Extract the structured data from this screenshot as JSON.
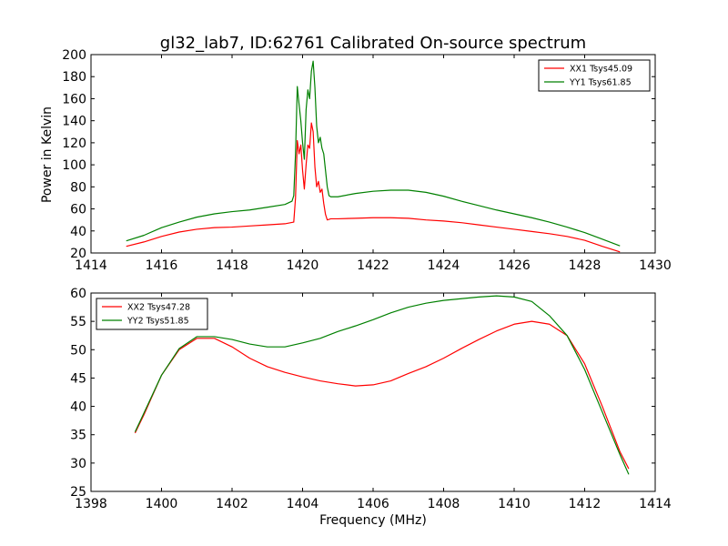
{
  "chart_data": [
    {
      "type": "line",
      "title": "gl32_lab7, ID:62761 Calibrated On-source spectrum",
      "xlabel": "",
      "ylabel": "Power in Kelvin",
      "xlim": [
        1414,
        1430
      ],
      "ylim": [
        20,
        200
      ],
      "xticks": [
        1414,
        1416,
        1418,
        1420,
        1422,
        1424,
        1426,
        1428,
        1430
      ],
      "yticks": [
        20,
        40,
        60,
        80,
        100,
        120,
        140,
        160,
        180,
        200
      ],
      "grid": false,
      "legend": "top-right",
      "series": [
        {
          "name": "XX1 Tsys45.09",
          "color": "#ff0000",
          "points": [
            [
              1415.0,
              26
            ],
            [
              1415.5,
              30
            ],
            [
              1416.0,
              35
            ],
            [
              1416.5,
              39
            ],
            [
              1417.0,
              41.5
            ],
            [
              1417.5,
              43
            ],
            [
              1418.0,
              43.5
            ],
            [
              1418.5,
              44.5
            ],
            [
              1419.0,
              45.5
            ],
            [
              1419.5,
              46.5
            ],
            [
              1419.75,
              48
            ],
            [
              1419.8,
              70
            ],
            [
              1419.85,
              122
            ],
            [
              1419.9,
              110
            ],
            [
              1419.95,
              118
            ],
            [
              1420.0,
              95
            ],
            [
              1420.05,
              78
            ],
            [
              1420.1,
              100
            ],
            [
              1420.15,
              118
            ],
            [
              1420.2,
              115
            ],
            [
              1420.25,
              138
            ],
            [
              1420.3,
              130
            ],
            [
              1420.35,
              98
            ],
            [
              1420.4,
              80
            ],
            [
              1420.45,
              85
            ],
            [
              1420.5,
              75
            ],
            [
              1420.55,
              78
            ],
            [
              1420.6,
              65
            ],
            [
              1420.65,
              55
            ],
            [
              1420.7,
              50
            ],
            [
              1420.8,
              51
            ],
            [
              1421.0,
              51
            ],
            [
              1421.5,
              51.5
            ],
            [
              1422.0,
              52
            ],
            [
              1422.5,
              52
            ],
            [
              1423.0,
              51.5
            ],
            [
              1423.5,
              50
            ],
            [
              1424.0,
              49
            ],
            [
              1424.5,
              47.5
            ],
            [
              1425.0,
              45.5
            ],
            [
              1425.5,
              43.5
            ],
            [
              1426.0,
              41.5
            ],
            [
              1426.5,
              39.5
            ],
            [
              1427.0,
              37.5
            ],
            [
              1427.5,
              35
            ],
            [
              1428.0,
              31.5
            ],
            [
              1428.5,
              26
            ],
            [
              1429.0,
              21
            ]
          ]
        },
        {
          "name": "YY1 Tsys61.85",
          "color": "#008000",
          "points": [
            [
              1415.0,
              31
            ],
            [
              1415.5,
              36
            ],
            [
              1416.0,
              43
            ],
            [
              1416.5,
              48
            ],
            [
              1417.0,
              52.5
            ],
            [
              1417.5,
              55.5
            ],
            [
              1418.0,
              57.5
            ],
            [
              1418.5,
              59
            ],
            [
              1419.0,
              61.5
            ],
            [
              1419.5,
              64
            ],
            [
              1419.7,
              67
            ],
            [
              1419.75,
              72
            ],
            [
              1419.8,
              110
            ],
            [
              1419.85,
              171
            ],
            [
              1419.9,
              155
            ],
            [
              1419.95,
              140
            ],
            [
              1420.0,
              120
            ],
            [
              1420.05,
              105
            ],
            [
              1420.1,
              150
            ],
            [
              1420.15,
              168
            ],
            [
              1420.2,
              160
            ],
            [
              1420.25,
              185
            ],
            [
              1420.3,
              194
            ],
            [
              1420.35,
              170
            ],
            [
              1420.4,
              135
            ],
            [
              1420.45,
              120
            ],
            [
              1420.5,
              125
            ],
            [
              1420.55,
              115
            ],
            [
              1420.6,
              110
            ],
            [
              1420.65,
              95
            ],
            [
              1420.7,
              80
            ],
            [
              1420.75,
              72
            ],
            [
              1420.8,
              71
            ],
            [
              1421.0,
              71
            ],
            [
              1421.5,
              74
            ],
            [
              1422.0,
              76
            ],
            [
              1422.5,
              77
            ],
            [
              1423.0,
              77
            ],
            [
              1423.5,
              75
            ],
            [
              1424.0,
              71.5
            ],
            [
              1424.5,
              67
            ],
            [
              1425.0,
              63
            ],
            [
              1425.5,
              59
            ],
            [
              1426.0,
              55.5
            ],
            [
              1426.5,
              52
            ],
            [
              1427.0,
              48
            ],
            [
              1427.5,
              43.5
            ],
            [
              1428.0,
              38.5
            ],
            [
              1428.5,
              32.5
            ],
            [
              1429.0,
              26.5
            ]
          ]
        }
      ]
    },
    {
      "type": "line",
      "title": "",
      "xlabel": "Frequency (MHz)",
      "ylabel": "",
      "xlim": [
        1398,
        1414
      ],
      "ylim": [
        25,
        60
      ],
      "xticks": [
        1398,
        1400,
        1402,
        1404,
        1406,
        1408,
        1410,
        1412,
        1414
      ],
      "yticks": [
        25,
        30,
        35,
        40,
        45,
        50,
        55,
        60
      ],
      "grid": false,
      "legend": "top-left",
      "series": [
        {
          "name": "XX2 Tsys47.28",
          "color": "#ff0000",
          "points": [
            [
              1399.25,
              35.3
            ],
            [
              1399.5,
              38.5
            ],
            [
              1400.0,
              45.5
            ],
            [
              1400.5,
              50
            ],
            [
              1401.0,
              52
            ],
            [
              1401.5,
              52
            ],
            [
              1402.0,
              50.5
            ],
            [
              1402.5,
              48.5
            ],
            [
              1403.0,
              47
            ],
            [
              1403.5,
              46
            ],
            [
              1404.0,
              45.2
            ],
            [
              1404.5,
              44.5
            ],
            [
              1405.0,
              44
            ],
            [
              1405.5,
              43.6
            ],
            [
              1406.0,
              43.8
            ],
            [
              1406.5,
              44.5
            ],
            [
              1407.0,
              45.8
            ],
            [
              1407.5,
              47
            ],
            [
              1408.0,
              48.5
            ],
            [
              1408.5,
              50.2
            ],
            [
              1409.0,
              51.8
            ],
            [
              1409.5,
              53.3
            ],
            [
              1410.0,
              54.5
            ],
            [
              1410.5,
              55
            ],
            [
              1411.0,
              54.5
            ],
            [
              1411.5,
              52.5
            ],
            [
              1412.0,
              47.5
            ],
            [
              1412.5,
              40
            ],
            [
              1413.0,
              32
            ],
            [
              1413.25,
              29
            ]
          ]
        },
        {
          "name": "YY2 Tsys51.85",
          "color": "#008000",
          "points": [
            [
              1399.25,
              35.5
            ],
            [
              1399.5,
              38.8
            ],
            [
              1400.0,
              45.5
            ],
            [
              1400.5,
              50.2
            ],
            [
              1401.0,
              52.3
            ],
            [
              1401.5,
              52.3
            ],
            [
              1402.0,
              51.8
            ],
            [
              1402.5,
              51
            ],
            [
              1403.0,
              50.5
            ],
            [
              1403.5,
              50.5
            ],
            [
              1404.0,
              51.2
            ],
            [
              1404.5,
              52
            ],
            [
              1405.0,
              53.2
            ],
            [
              1405.5,
              54.2
            ],
            [
              1406.0,
              55.3
            ],
            [
              1406.5,
              56.5
            ],
            [
              1407.0,
              57.5
            ],
            [
              1407.5,
              58.2
            ],
            [
              1408.0,
              58.7
            ],
            [
              1408.5,
              59
            ],
            [
              1409.0,
              59.3
            ],
            [
              1409.5,
              59.5
            ],
            [
              1410.0,
              59.3
            ],
            [
              1410.5,
              58.5
            ],
            [
              1411.0,
              56
            ],
            [
              1411.5,
              52.5
            ],
            [
              1412.0,
              46.5
            ],
            [
              1412.5,
              39
            ],
            [
              1413.0,
              31.5
            ],
            [
              1413.25,
              28
            ]
          ]
        }
      ]
    }
  ]
}
